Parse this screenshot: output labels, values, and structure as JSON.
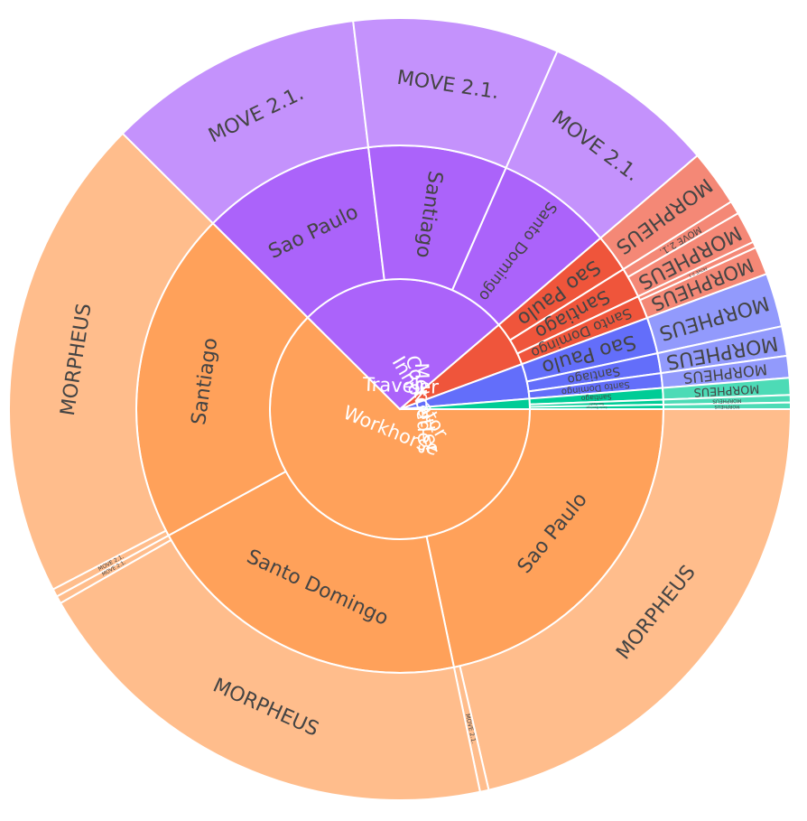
{
  "chart_data": {
    "type": "sunburst",
    "rings": [
      "segment",
      "city",
      "product"
    ],
    "hierarchy": [
      {
        "name": "Workhorse",
        "value": 0.6245,
        "color": "#FFA15A",
        "children": [
          {
            "name": "Sao Paulo",
            "value": 0.2171,
            "children": [
              {
                "name": "MORPHEUS",
                "value": 0.2135
              },
              {
                "name": "MOVE 2.1.",
                "value": 0.0036
              }
            ]
          },
          {
            "name": "Santo Domingo",
            "value": 0.2034,
            "children": [
              {
                "name": "MORPHEUS",
                "value": 0.2003
              },
              {
                "name": "MOVE 2.1.",
                "value": 0.0031
              }
            ]
          },
          {
            "name": "Santiago",
            "value": 0.204,
            "children": [
              {
                "name": "MOVE 2.1.",
                "value": 0.0033
              },
              {
                "name": "MORPHEUS",
                "value": 0.2007
              }
            ]
          }
        ]
      },
      {
        "name": "Traveler",
        "value": 0.2632,
        "color": "#AB63FA",
        "children": [
          {
            "name": "Sao Paulo",
            "value": 0.1064,
            "children": [
              {
                "name": "MOVE 2.1.",
                "value": 0.1064
              }
            ]
          },
          {
            "name": "Santiago",
            "value": 0.0851,
            "children": [
              {
                "name": "MOVE 2.1.",
                "value": 0.0851
              }
            ]
          },
          {
            "name": "Santo Domingo",
            "value": 0.0717,
            "children": [
              {
                "name": "MOVE 2.1.",
                "value": 0.0717
              }
            ]
          }
        ]
      },
      {
        "name": "Innovator",
        "value": 0.0561,
        "color": "#EF553B",
        "children": [
          {
            "name": "Sao Paulo",
            "value": 0.0233,
            "children": [
              {
                "name": "MORPHEUS",
                "value": 0.0233
              }
            ]
          },
          {
            "name": "Santiago",
            "value": 0.0187,
            "children": [
              {
                "name": "MOVE 2.1.",
                "value": 0.0055
              },
              {
                "name": "MORPHEUS",
                "value": 0.0132
              }
            ]
          },
          {
            "name": "Santo Domingo",
            "value": 0.0141,
            "children": [
              {
                "name": "MOVE 2.1.",
                "value": 0.0025
              },
              {
                "name": "MORPHEUS",
                "value": 0.0116
              }
            ]
          }
        ]
      },
      {
        "name": "Costcutter",
        "value": 0.0434,
        "color": "#636EFA",
        "children": [
          {
            "name": "Sao Paulo",
            "value": 0.0222,
            "children": [
              {
                "name": "MORPHEUS",
                "value": 0.0222
              }
            ]
          },
          {
            "name": "Santiago",
            "value": 0.0122,
            "children": [
              {
                "name": "MORPHEUS",
                "value": 0.0122
              }
            ]
          },
          {
            "name": "Santo Domingo",
            "value": 0.009,
            "children": [
              {
                "name": "MORPHEUS",
                "value": 0.009
              }
            ]
          }
        ]
      },
      {
        "name": "Mercedes",
        "value": 0.0128,
        "color": "#00CC96",
        "children": [
          {
            "name": "Santiago",
            "value": 0.007,
            "children": [
              {
                "name": "MORPHEUS",
                "value": 0.007
              }
            ]
          },
          {
            "name": "Sao Paulo",
            "value": 0.0031,
            "children": [
              {
                "name": "MORPHEUS",
                "value": 0.0031
              }
            ]
          },
          {
            "name": "Santo Domingo",
            "value": 0.0027,
            "children": [
              {
                "name": "MORPHEUS",
                "value": 0.0027
              }
            ]
          }
        ]
      }
    ]
  }
}
